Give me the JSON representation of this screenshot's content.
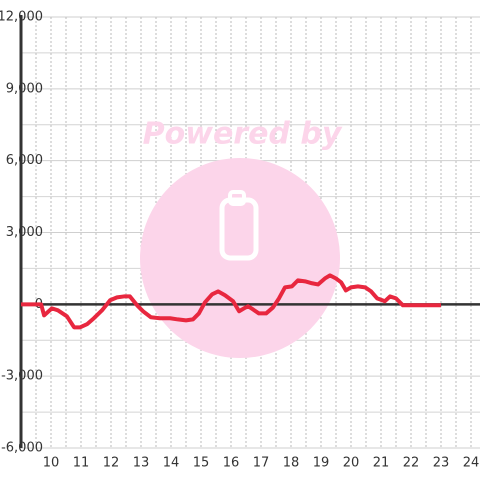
{
  "chart_data": {
    "type": "line",
    "watermark": "Powered by",
    "x": [
      9.0,
      9.67,
      9.77,
      10.03,
      10.23,
      10.53,
      10.77,
      10.97,
      11.2,
      11.43,
      11.7,
      11.97,
      12.2,
      12.43,
      12.63,
      12.87,
      13.07,
      13.33,
      13.63,
      13.97,
      14.23,
      14.5,
      14.73,
      14.93,
      15.13,
      15.37,
      15.57,
      15.8,
      16.07,
      16.27,
      16.43,
      16.57,
      16.73,
      16.93,
      17.17,
      17.4,
      17.6,
      17.8,
      18.03,
      18.23,
      18.47,
      18.7,
      18.9,
      19.13,
      19.3,
      19.5,
      19.67,
      19.83,
      20.0,
      20.23,
      20.47,
      20.67,
      20.87,
      21.13,
      21.3,
      21.5,
      21.73,
      23.0
    ],
    "series": [
      {
        "color": "#e8273f",
        "values": [
          0,
          0,
          -460,
          -170,
          -250,
          -500,
          -960,
          -960,
          -830,
          -580,
          -250,
          170,
          290,
          330,
          330,
          -40,
          -290,
          -540,
          -580,
          -580,
          -630,
          -670,
          -630,
          -380,
          80,
          420,
          540,
          380,
          130,
          -290,
          -170,
          -80,
          -210,
          -380,
          -380,
          -130,
          250,
          710,
          750,
          1000,
          960,
          880,
          830,
          1080,
          1210,
          1080,
          920,
          580,
          710,
          750,
          710,
          540,
          250,
          130,
          330,
          250,
          -40,
          -40
        ]
      }
    ],
    "xlim": [
      9,
      24.3
    ],
    "ylim": [
      -6000,
      12000
    ],
    "xticks": [
      10,
      11,
      12,
      13,
      14,
      15,
      16,
      17,
      18,
      19,
      20,
      21,
      22,
      23,
      24
    ],
    "xminorticks": [
      9.5,
      10,
      10.5,
      11,
      11.5,
      12,
      12.5,
      13,
      13.5,
      14,
      14.5,
      15,
      15.5,
      16,
      16.5,
      17,
      17.5,
      18,
      18.5,
      19,
      19.5,
      20,
      20.5,
      21,
      21.5,
      22,
      22.5,
      23,
      23.5,
      24
    ],
    "yticks": [
      {
        "value": -6000,
        "label": "-6,000"
      },
      {
        "value": -3000,
        "label": "-3,000"
      },
      0,
      {
        "value": 3000,
        "label": "3,000"
      },
      {
        "value": 6000,
        "label": "6,000"
      },
      {
        "value": 9000,
        "label": "9,000"
      },
      {
        "value": 12000,
        "label": "12,000"
      }
    ],
    "yminorticks": [
      -4500,
      -1500,
      1500,
      4500,
      7500,
      10500
    ],
    "grid": true
  }
}
